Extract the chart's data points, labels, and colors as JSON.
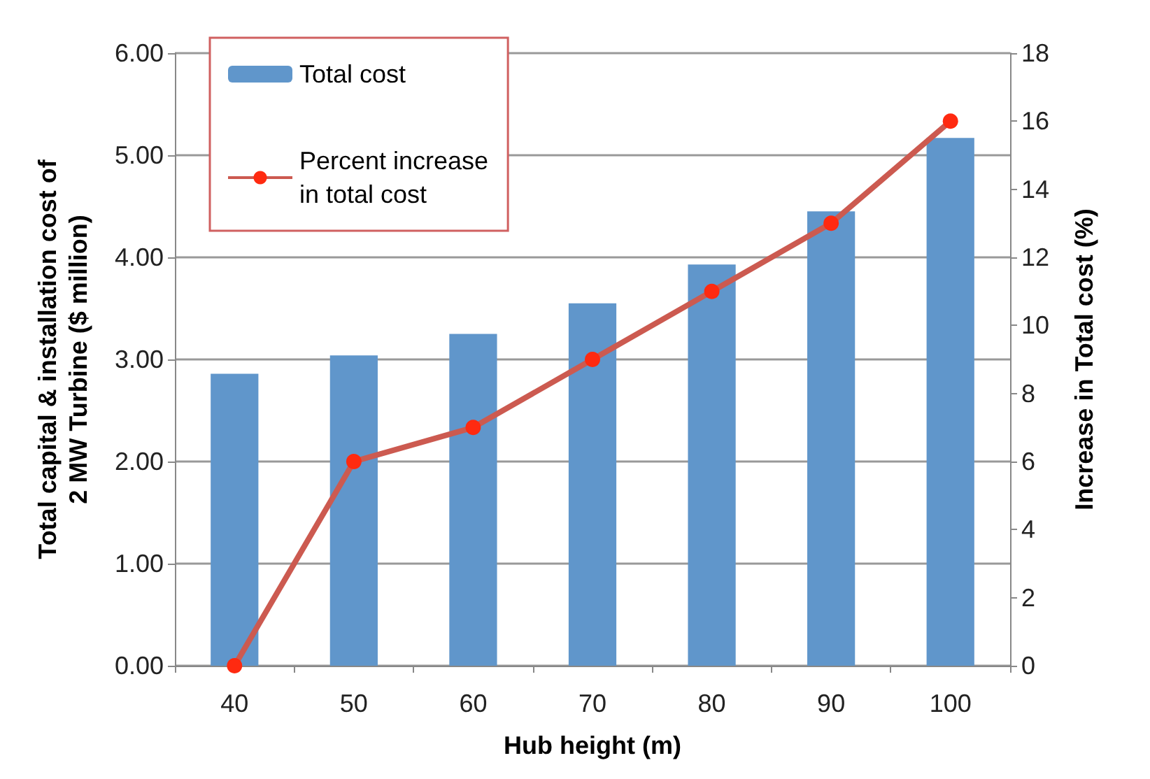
{
  "chart_data": {
    "type": "bar",
    "xlabel": "Hub height (m)",
    "ylabel": "Total capital & installation cost of\n2 MW Turbine ($ million)",
    "y2label": "Increase in Total cost (%)",
    "categories": [
      "40",
      "50",
      "60",
      "70",
      "80",
      "90",
      "100"
    ],
    "series": [
      {
        "name": "Total cost",
        "color": "#6096cb",
        "values": [
          2.86,
          3.04,
          3.25,
          3.55,
          3.93,
          4.45,
          5.17
        ]
      },
      {
        "name": "Percent increase\nin total cost",
        "type": "line",
        "axis": "y2",
        "color": "#cc5a50",
        "marker": "circle",
        "values": [
          0,
          6,
          7,
          9,
          11,
          13,
          16
        ]
      }
    ],
    "ylim": [
      0,
      6
    ],
    "yticks": [
      {
        "value": 0,
        "label": "0.00"
      },
      {
        "value": 1,
        "label": "1.00"
      },
      {
        "value": 2,
        "label": "2.00"
      },
      {
        "value": 3,
        "label": "3.00"
      },
      {
        "value": 4,
        "label": "4.00"
      },
      {
        "value": 5,
        "label": "5.00"
      },
      {
        "value": 6,
        "label": "6.00"
      }
    ],
    "y2lim": [
      0,
      18
    ],
    "y2ticks": [
      0,
      2,
      4,
      6,
      8,
      10,
      12,
      14,
      16,
      18
    ],
    "grid": "y",
    "legend": "top left"
  }
}
